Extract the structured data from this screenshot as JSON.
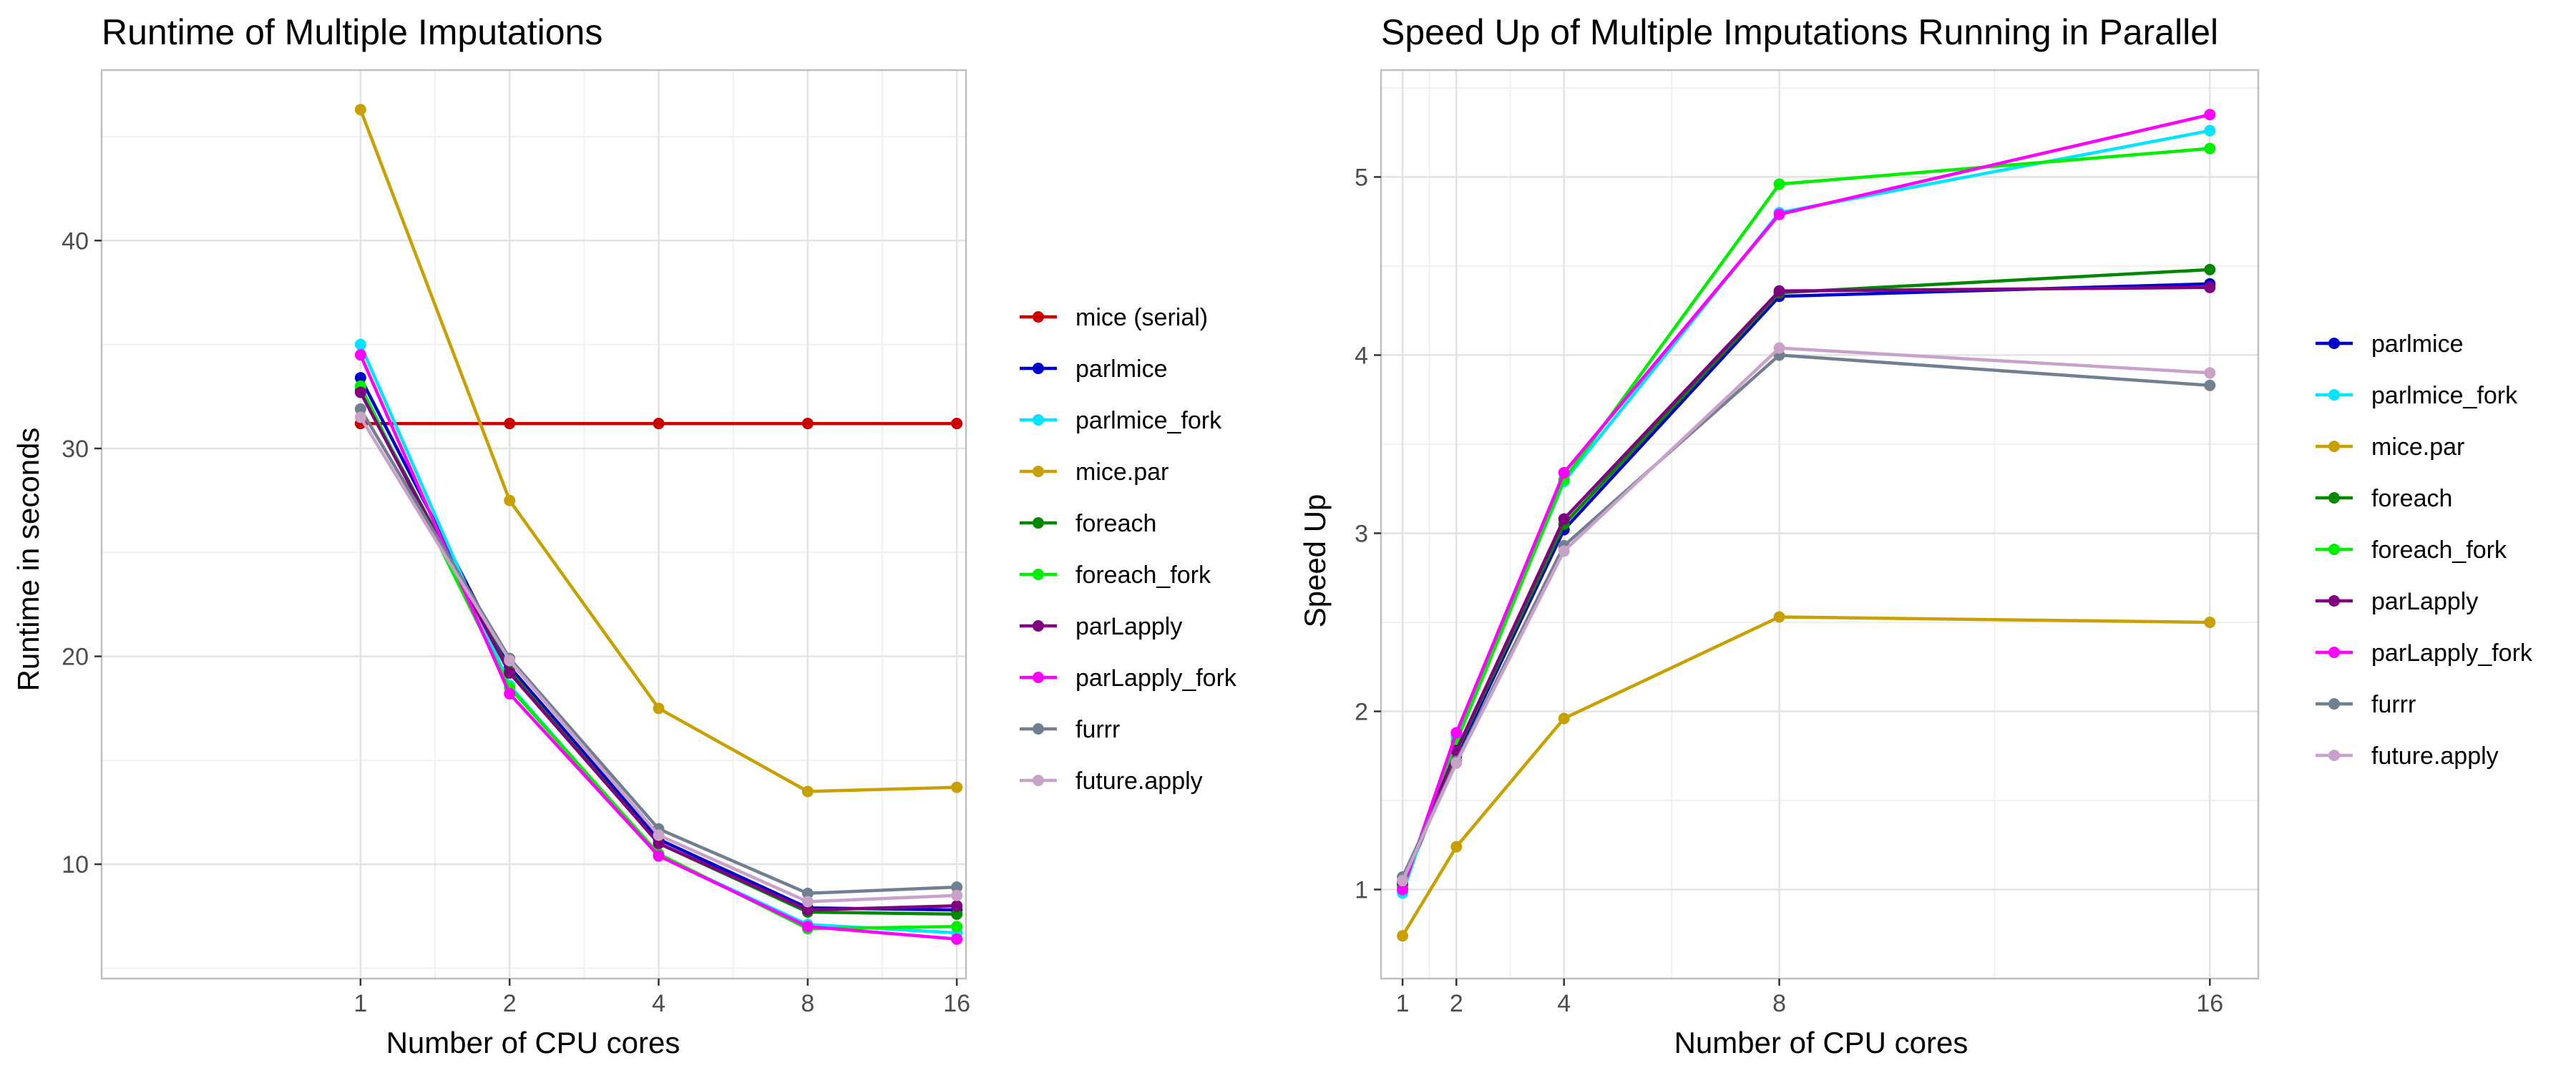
{
  "chart_data": [
    {
      "type": "line",
      "title": "Runtime of Multiple Imputations",
      "xlabel": "Number of CPU cores",
      "ylabel": "Runtime in seconds",
      "x": [
        1,
        2,
        4,
        8,
        16
      ],
      "x_ticks": [
        1,
        2,
        4,
        8,
        16
      ],
      "y_ticks": [
        10,
        20,
        30,
        40
      ],
      "xlim": [
        0.3,
        16.7
      ],
      "ylim": [
        4.5,
        48.2
      ],
      "x_scale": "log",
      "grid": true,
      "legend_position": "right",
      "series": [
        {
          "name": "mice (serial)",
          "color": "#cc0000",
          "values": [
            31.2,
            31.2,
            31.2,
            31.2,
            31.2
          ]
        },
        {
          "name": "parlmice",
          "color": "#0000cc",
          "values": [
            33.4,
            19.5,
            11.2,
            7.9,
            7.8
          ]
        },
        {
          "name": "parlmice_fork",
          "color": "#00e5ff",
          "values": [
            35.0,
            18.6,
            10.4,
            7.1,
            6.7
          ]
        },
        {
          "name": "mice.par",
          "color": "#c8a000",
          "values": [
            46.3,
            27.5,
            17.5,
            13.5,
            13.7
          ]
        },
        {
          "name": "foreach",
          "color": "#008800",
          "values": [
            32.8,
            19.3,
            11.0,
            7.7,
            7.6
          ]
        },
        {
          "name": "foreach_fork",
          "color": "#00ee00",
          "values": [
            33.0,
            18.5,
            10.5,
            6.9,
            7.0
          ]
        },
        {
          "name": "parLapply",
          "color": "#800080",
          "values": [
            32.7,
            19.2,
            11.0,
            7.8,
            8.0
          ]
        },
        {
          "name": "parLapply_fork",
          "color": "#ff00ff",
          "values": [
            34.5,
            18.2,
            10.4,
            7.0,
            6.4
          ]
        },
        {
          "name": "furrr",
          "color": "#708090",
          "values": [
            31.9,
            19.9,
            11.7,
            8.6,
            8.9
          ]
        },
        {
          "name": "future.apply",
          "color": "#c8a2c8",
          "values": [
            31.5,
            19.8,
            11.4,
            8.2,
            8.5
          ]
        }
      ]
    },
    {
      "type": "line",
      "title": "Speed Up of Multiple Imputations Running in Parallel",
      "xlabel": "Number of CPU cores",
      "ylabel": "Speed Up",
      "x": [
        1,
        2,
        4,
        8,
        16
      ],
      "x_ticks": [
        1,
        2,
        4,
        8,
        16
      ],
      "y_ticks": [
        1,
        2,
        3,
        4,
        5
      ],
      "xlim": [
        0.6,
        16.9
      ],
      "ylim": [
        0.5,
        5.6
      ],
      "x_scale": "linear",
      "grid": true,
      "legend_position": "right",
      "series": [
        {
          "name": "parlmice",
          "color": "#0000cc",
          "values": [
            1.02,
            1.75,
            3.02,
            4.33,
            4.4
          ]
        },
        {
          "name": "parlmice_fork",
          "color": "#00e5ff",
          "values": [
            0.98,
            1.86,
            3.29,
            4.8,
            5.26
          ]
        },
        {
          "name": "mice.par",
          "color": "#c8a000",
          "values": [
            0.74,
            1.24,
            1.96,
            2.53,
            2.5
          ]
        },
        {
          "name": "foreach",
          "color": "#008800",
          "values": [
            1.03,
            1.77,
            3.05,
            4.35,
            4.48
          ]
        },
        {
          "name": "foreach_fork",
          "color": "#00ee00",
          "values": [
            1.01,
            1.83,
            3.3,
            4.96,
            5.16
          ]
        },
        {
          "name": "parLapply",
          "color": "#800080",
          "values": [
            1.04,
            1.78,
            3.08,
            4.36,
            4.38
          ]
        },
        {
          "name": "parLapply_fork",
          "color": "#ff00ff",
          "values": [
            1.0,
            1.88,
            3.34,
            4.79,
            5.35
          ]
        },
        {
          "name": "furrr",
          "color": "#708090",
          "values": [
            1.07,
            1.72,
            2.93,
            4.0,
            3.83
          ]
        },
        {
          "name": "future.apply",
          "color": "#c8a2c8",
          "values": [
            1.05,
            1.71,
            2.9,
            4.04,
            3.9
          ]
        }
      ]
    }
  ]
}
